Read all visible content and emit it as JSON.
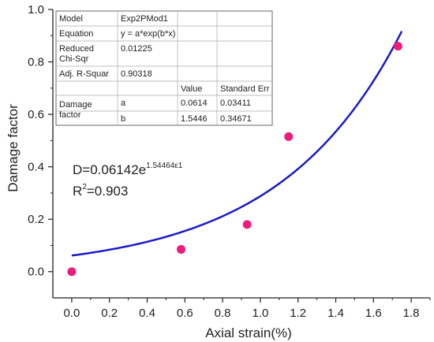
{
  "chart_data": {
    "type": "scatter",
    "xlabel": "Axial strain(%)",
    "ylabel": "Damage factor",
    "xlim": [
      -0.1,
      1.9
    ],
    "ylim": [
      -0.1,
      1.0
    ],
    "xticks": [
      "0.0",
      "0.2",
      "0.4",
      "0.6",
      "0.8",
      "1.0",
      "1.2",
      "1.4",
      "1.6",
      "1.8"
    ],
    "xtick_values": [
      0,
      0.2,
      0.4,
      0.6,
      0.8,
      1.0,
      1.2,
      1.4,
      1.6,
      1.8
    ],
    "yticks": [
      "0.0",
      "0.2",
      "0.4",
      "0.6",
      "0.8",
      "1.0"
    ],
    "ytick_values": [
      0,
      0.2,
      0.4,
      0.6,
      0.8,
      1.0
    ],
    "points": {
      "x": [
        0.0,
        0.58,
        0.93,
        1.15,
        1.73
      ],
      "y": [
        0.0,
        0.085,
        0.18,
        0.515,
        0.86
      ],
      "color": "#ee1c7a"
    },
    "fit": {
      "a": 0.06142,
      "b": 1.54464,
      "x_range": [
        0.0,
        1.75
      ],
      "color": "#1a1acc"
    },
    "equation": {
      "main": "D=0.06142e",
      "exponent": "1.54464ε1",
      "r2_prefix": "R",
      "r2_sup": "2",
      "r2_value": "=0.903"
    },
    "fit_table": {
      "rows": [
        [
          "Model",
          "Exp2PMod1",
          "",
          ""
        ],
        [
          "Equation",
          "y = a*exp(b*x)",
          "",
          ""
        ],
        [
          "Reduced Chi-Sqr",
          "0.01225",
          "",
          ""
        ],
        [
          "Adj. R-Squar",
          "0.90318",
          "",
          ""
        ],
        [
          "",
          "",
          "Value",
          "Standard Err"
        ],
        [
          "Damage factor",
          "a",
          "0.0614",
          "0.03411"
        ],
        [
          "",
          "b",
          "1.5446",
          "0.34671"
        ]
      ]
    },
    "grid": false
  }
}
